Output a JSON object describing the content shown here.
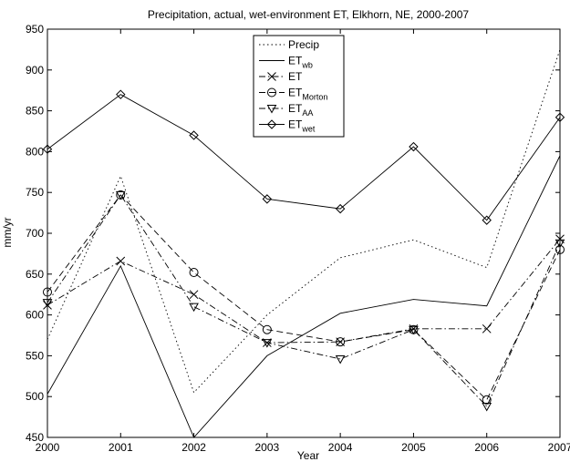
{
  "chart_data": {
    "type": "line",
    "title": "Precipitation, actual, wet-environment ET, Elkhorn, NE, 2000-2007",
    "xlabel": "Year",
    "ylabel": "mm/yr",
    "x": [
      2000,
      2001,
      2002,
      2003,
      2004,
      2005,
      2006,
      2007
    ],
    "xlim": [
      2000,
      2007
    ],
    "ylim": [
      450,
      950
    ],
    "xticks": [
      "2000",
      "2001",
      "2002",
      "2003",
      "2004",
      "2005",
      "2006",
      "2007"
    ],
    "yticks": [
      "450",
      "500",
      "550",
      "600",
      "650",
      "700",
      "750",
      "800",
      "850",
      "900",
      "950"
    ],
    "grid": false,
    "legend_position": "top-center",
    "series": [
      {
        "name": "Precip",
        "base": "Precip",
        "sub": "",
        "style": "dotted",
        "marker": "none",
        "values": [
          570,
          770,
          505,
          600,
          670,
          692,
          658,
          925
        ]
      },
      {
        "name": "ETwb",
        "base": "ET",
        "sub": "wb",
        "style": "solid",
        "marker": "none",
        "values": [
          503,
          660,
          450,
          550,
          602,
          619,
          611,
          795
        ]
      },
      {
        "name": "ET",
        "base": "ET",
        "sub": "",
        "style": "dashdot",
        "marker": "x",
        "values": [
          612,
          666,
          625,
          566,
          567,
          583,
          583,
          693
        ]
      },
      {
        "name": "ETMorton",
        "base": "ET",
        "sub": "Morton",
        "style": "dashed",
        "marker": "circle",
        "values": [
          628,
          747,
          652,
          582,
          567,
          582,
          496,
          680
        ]
      },
      {
        "name": "ETAA",
        "base": "ET",
        "sub": "AA",
        "style": "dashdot",
        "marker": "triangle-down",
        "values": [
          615,
          747,
          610,
          566,
          546,
          582,
          488,
          688
        ]
      },
      {
        "name": "ETwet",
        "base": "ET",
        "sub": "wet",
        "style": "solid",
        "marker": "diamond",
        "values": [
          803,
          870,
          820,
          742,
          730,
          806,
          716,
          842
        ]
      }
    ],
    "colors": {
      "line": "#000000",
      "background": "#ffffff"
    }
  }
}
